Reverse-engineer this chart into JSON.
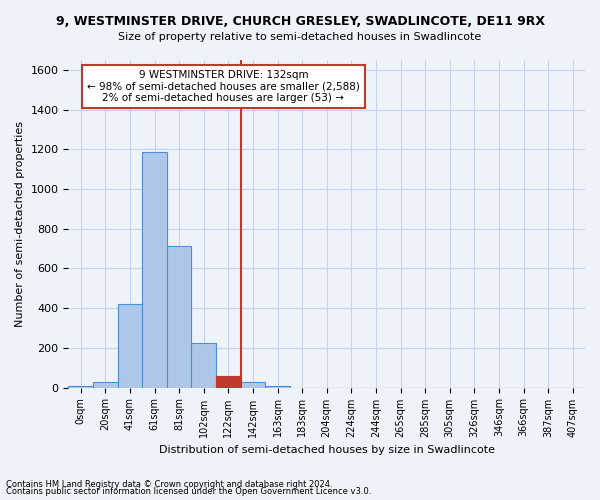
{
  "title": "9, WESTMINSTER DRIVE, CHURCH GRESLEY, SWADLINCOTE, DE11 9RX",
  "subtitle": "Size of property relative to semi-detached houses in Swadlincote",
  "xlabel": "Distribution of semi-detached houses by size in Swadlincote",
  "ylabel": "Number of semi-detached properties",
  "footnote1": "Contains HM Land Registry data © Crown copyright and database right 2024.",
  "footnote2": "Contains public sector information licensed under the Open Government Licence v3.0.",
  "bin_labels": [
    "0sqm",
    "20sqm",
    "41sqm",
    "61sqm",
    "81sqm",
    "102sqm",
    "122sqm",
    "142sqm",
    "163sqm",
    "183sqm",
    "204sqm",
    "224sqm",
    "244sqm",
    "265sqm",
    "285sqm",
    "305sqm",
    "326sqm",
    "346sqm",
    "366sqm",
    "387sqm",
    "407sqm"
  ],
  "bar_values": [
    10,
    30,
    420,
    1185,
    715,
    225,
    60,
    30,
    10,
    0,
    0,
    0,
    0,
    0,
    0,
    0,
    0,
    0,
    0,
    0,
    0
  ],
  "highlight_bar_index": 6,
  "vline_x": 6.5,
  "property_size": "132sqm",
  "smaller_pct": 98,
  "smaller_count": 2588,
  "larger_pct": 2,
  "larger_count": 53,
  "bar_color": "#aec6e8",
  "bar_edge_color": "#4a90d9",
  "highlight_bar_color": "#c0392b",
  "vline_color": "#c0392b",
  "bg_color": "#eef2f9",
  "annotation_box_edge": "#c0392b",
  "grid_color": "#c8d4e8",
  "ylim": [
    0,
    1650
  ],
  "yticks": [
    0,
    200,
    400,
    600,
    800,
    1000,
    1200,
    1400,
    1600
  ]
}
